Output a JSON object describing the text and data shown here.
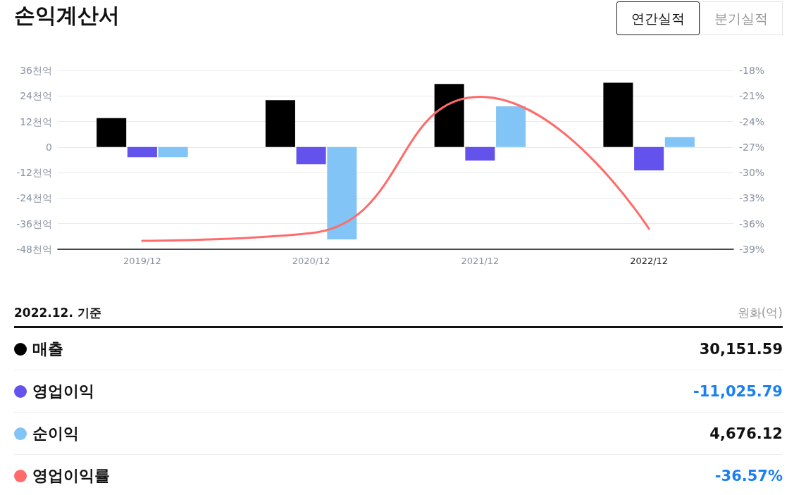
{
  "chart_data": {
    "type": "bar",
    "title": "손익계산서",
    "categories": [
      "2019/12",
      "2020/12",
      "2021/12",
      "2022/12"
    ],
    "series": [
      {
        "name": "매출",
        "color": "#000000",
        "values": [
          13.6,
          22.0,
          29.6,
          30.2
        ]
      },
      {
        "name": "영업이익",
        "color": "#6352eb",
        "values": [
          -4.8,
          -8.1,
          -6.3,
          -11.0
        ]
      },
      {
        "name": "순이익",
        "color": "#82c4f5",
        "values": [
          -4.8,
          -43.4,
          19.1,
          4.7
        ]
      },
      {
        "name": "영업이익률",
        "type": "line",
        "axis": "y2",
        "color": "#ff6b6b",
        "values": [
          -38.0,
          -37.1,
          -21.1,
          -36.6
        ]
      }
    ],
    "ylim": [
      -48,
      36
    ],
    "yticks": [
      {
        "value": -48,
        "label": "-48천억"
      },
      {
        "value": -36,
        "label": "-36천억"
      },
      {
        "value": -24,
        "label": "-24천억"
      },
      {
        "value": -12,
        "label": "-12천억"
      },
      0,
      {
        "value": 12,
        "label": "12천억"
      },
      {
        "value": 24,
        "label": "24천억"
      },
      {
        "value": 36,
        "label": "36천억"
      }
    ],
    "y2lim": [
      -39,
      -18
    ],
    "y2ticks": [
      {
        "value": -39,
        "label": "-39%"
      },
      {
        "value": -36,
        "label": "-36%"
      },
      {
        "value": -33,
        "label": "-33%"
      },
      {
        "value": -30,
        "label": "-30%"
      },
      {
        "value": -27,
        "label": "-27%"
      },
      {
        "value": -24,
        "label": "-24%"
      },
      {
        "value": -21,
        "label": "-21%"
      },
      {
        "value": -18,
        "label": "-18%"
      }
    ],
    "grid": "y",
    "legend": "bottom",
    "marker": "none",
    "line_style": "solid",
    "annotations": [
      "연간실적",
      "분기실적",
      "2022.12. 기준",
      "원화(억)",
      "30,151.59",
      "-11,025.79",
      "4,676.12",
      "-36.57%"
    ]
  }
}
